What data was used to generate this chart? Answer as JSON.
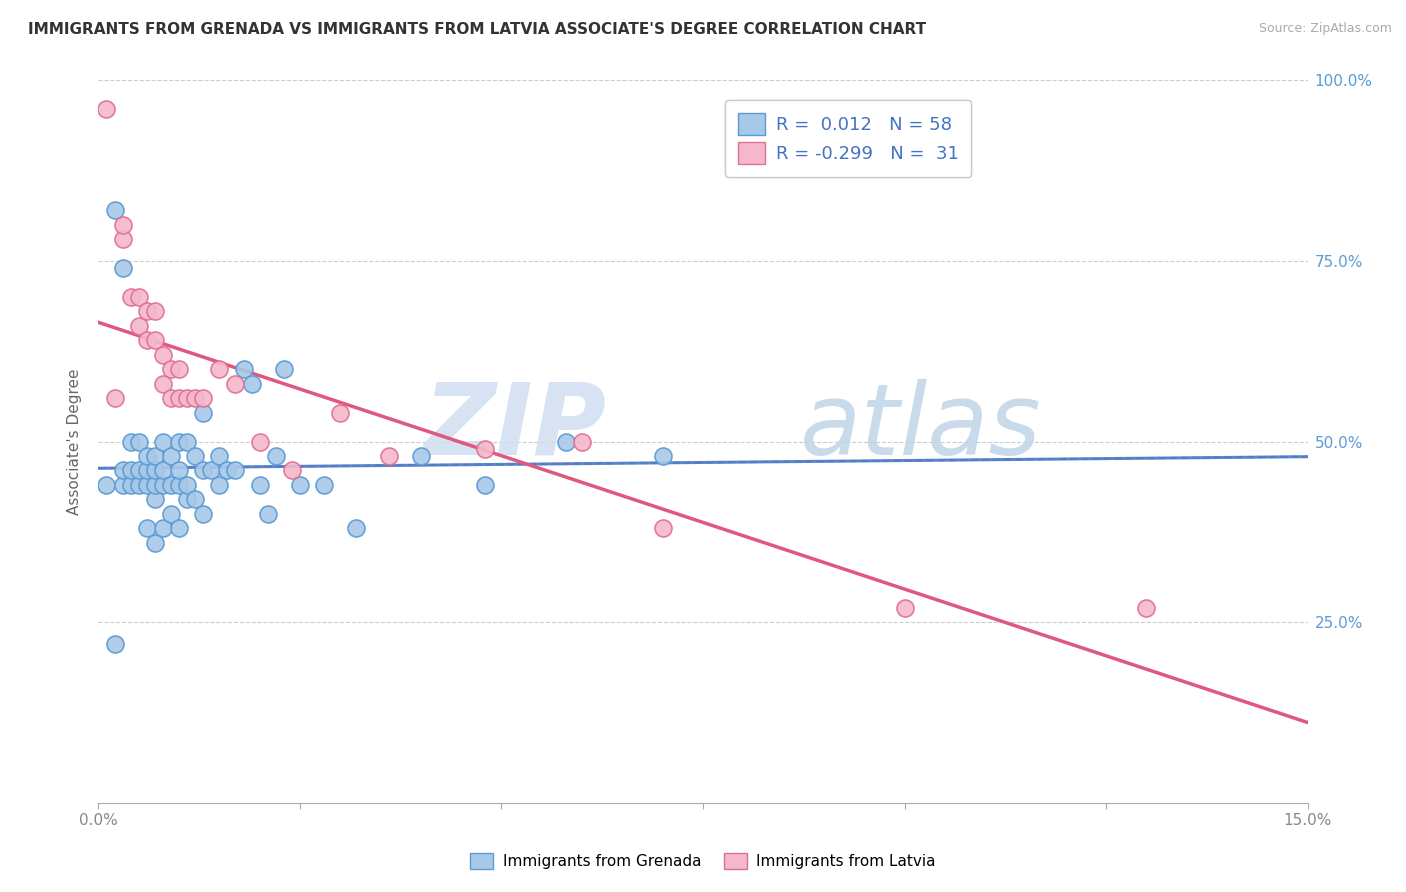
{
  "title": "IMMIGRANTS FROM GRENADA VS IMMIGRANTS FROM LATVIA ASSOCIATE'S DEGREE CORRELATION CHART",
  "source": "Source: ZipAtlas.com",
  "ylabel": "Associate's Degree",
  "xlim": [
    0.0,
    0.15
  ],
  "ylim": [
    0.0,
    1.0
  ],
  "ytick_labels": [
    "25.0%",
    "50.0%",
    "75.0%",
    "100.0%"
  ],
  "ytick_positions": [
    0.25,
    0.5,
    0.75,
    1.0
  ],
  "grenada_color": "#a8c8e8",
  "grenada_edge": "#5b9bd5",
  "latvia_color": "#f4b8cc",
  "latvia_edge": "#e07090",
  "grenada_R": 0.012,
  "grenada_N": 58,
  "latvia_R": -0.299,
  "latvia_N": 31,
  "legend_label_grenada": "Immigrants from Grenada",
  "legend_label_latvia": "Immigrants from Latvia",
  "background_color": "#ffffff",
  "grenada_x": [
    0.001,
    0.002,
    0.002,
    0.003,
    0.003,
    0.003,
    0.004,
    0.004,
    0.004,
    0.005,
    0.005,
    0.005,
    0.006,
    0.006,
    0.006,
    0.006,
    0.007,
    0.007,
    0.007,
    0.007,
    0.007,
    0.008,
    0.008,
    0.008,
    0.008,
    0.009,
    0.009,
    0.009,
    0.01,
    0.01,
    0.01,
    0.01,
    0.011,
    0.011,
    0.011,
    0.012,
    0.012,
    0.013,
    0.013,
    0.013,
    0.014,
    0.015,
    0.015,
    0.016,
    0.017,
    0.018,
    0.019,
    0.02,
    0.021,
    0.022,
    0.023,
    0.025,
    0.028,
    0.032,
    0.04,
    0.048,
    0.058,
    0.07
  ],
  "grenada_y": [
    0.44,
    0.22,
    0.82,
    0.44,
    0.46,
    0.74,
    0.44,
    0.46,
    0.5,
    0.44,
    0.46,
    0.5,
    0.38,
    0.44,
    0.46,
    0.48,
    0.36,
    0.42,
    0.44,
    0.46,
    0.48,
    0.38,
    0.44,
    0.46,
    0.5,
    0.4,
    0.44,
    0.48,
    0.38,
    0.44,
    0.46,
    0.5,
    0.42,
    0.44,
    0.5,
    0.42,
    0.48,
    0.4,
    0.46,
    0.54,
    0.46,
    0.44,
    0.48,
    0.46,
    0.46,
    0.6,
    0.58,
    0.44,
    0.4,
    0.48,
    0.6,
    0.44,
    0.44,
    0.38,
    0.48,
    0.44,
    0.5,
    0.48
  ],
  "latvia_x": [
    0.001,
    0.002,
    0.003,
    0.003,
    0.004,
    0.005,
    0.005,
    0.006,
    0.006,
    0.007,
    0.007,
    0.008,
    0.008,
    0.009,
    0.009,
    0.01,
    0.01,
    0.011,
    0.012,
    0.013,
    0.015,
    0.017,
    0.02,
    0.024,
    0.03,
    0.036,
    0.048,
    0.06,
    0.07,
    0.1,
    0.13
  ],
  "latvia_y": [
    0.96,
    0.56,
    0.78,
    0.8,
    0.7,
    0.66,
    0.7,
    0.64,
    0.68,
    0.64,
    0.68,
    0.58,
    0.62,
    0.56,
    0.6,
    0.56,
    0.6,
    0.56,
    0.56,
    0.56,
    0.6,
    0.58,
    0.5,
    0.46,
    0.54,
    0.48,
    0.49,
    0.5,
    0.38,
    0.27,
    0.27
  ],
  "grenada_line_color": "#4472c4",
  "latvia_line_color": "#e05880",
  "watermark_zip_color": "#d0dff0",
  "watermark_atlas_color": "#c0d4e8"
}
